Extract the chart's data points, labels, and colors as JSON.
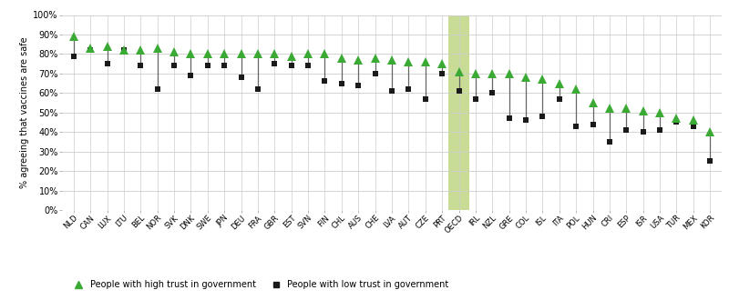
{
  "countries": [
    "NLD",
    "CAN",
    "LUX",
    "LTU",
    "BEL",
    "NOR",
    "SVK",
    "DNK",
    "SWE",
    "JPN",
    "DEU",
    "FRA",
    "GBR",
    "EST",
    "SVN",
    "FIN",
    "CHL",
    "AUS",
    "CHE",
    "LVA",
    "AUT",
    "CZE",
    "PRT",
    "OECD",
    "IRL",
    "NZL",
    "GRE",
    "COL",
    "ISL",
    "ITA",
    "POL",
    "HUN",
    "CRI",
    "ESP",
    "ISR",
    "USA",
    "TUR",
    "MEX",
    "KOR"
  ],
  "high_trust": [
    89,
    83,
    84,
    82,
    82,
    83,
    81,
    80,
    80,
    80,
    80,
    80,
    80,
    79,
    80,
    80,
    78,
    77,
    78,
    77,
    76,
    76,
    75,
    71,
    70,
    70,
    70,
    68,
    67,
    65,
    62,
    55,
    52,
    52,
    51,
    50,
    47,
    46,
    40
  ],
  "low_trust": [
    79,
    82,
    75,
    82,
    74,
    62,
    74,
    69,
    74,
    74,
    68,
    62,
    75,
    74,
    74,
    66,
    65,
    64,
    70,
    61,
    62,
    57,
    70,
    61,
    57,
    60,
    47,
    46,
    48,
    57,
    43,
    44,
    35,
    41,
    40,
    41,
    45,
    43,
    25
  ],
  "oecd_index": 23,
  "highlight_color": "#c8dc96",
  "triangle_color": "#3aaa35",
  "low_color": "#1a1a1a",
  "line_color": "#666666",
  "grid_color": "#cccccc",
  "bg_color": "#ffffff",
  "ylabel": "% agreeing that vaccines are safe",
  "yticks": [
    0,
    10,
    20,
    30,
    40,
    50,
    60,
    70,
    80,
    90,
    100
  ],
  "legend_high": "People with high trust in government",
  "legend_low": "People with low trust in government"
}
